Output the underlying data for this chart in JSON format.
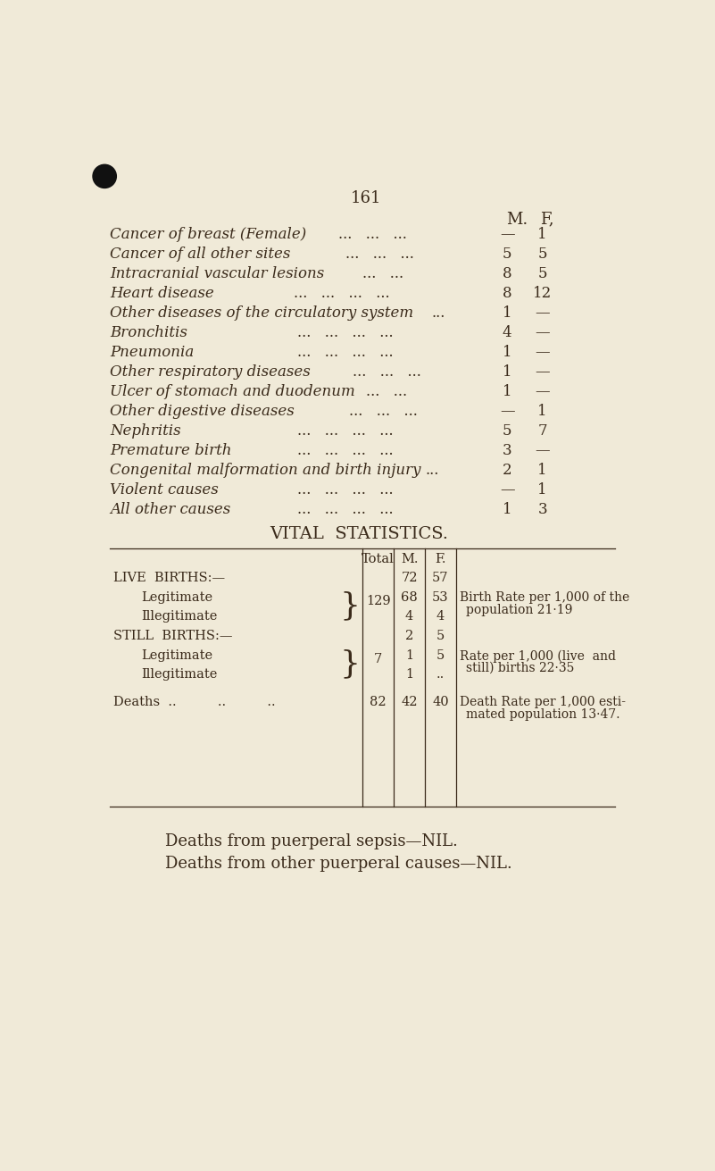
{
  "bg_color": "#f0ead8",
  "text_color": "#3a2a1a",
  "page_number": "161",
  "col_header_M": "M.",
  "col_header_F": "F,",
  "diseases": [
    {
      "label": "Cancer of breast (Female)",
      "dots3": true,
      "M": "—",
      "F": "1"
    },
    {
      "label": "Cancer of all other sites",
      "dots3": true,
      "M": "5",
      "F": "5"
    },
    {
      "label": "Intracranial vascular lesions",
      "dots2": true,
      "M": "8",
      "F": "5"
    },
    {
      "label": "Heart disease",
      "dots4": true,
      "M": "8",
      "F": "12"
    },
    {
      "label": "Other diseases of the circulatory system",
      "dots1": true,
      "M": "1",
      "F": "—"
    },
    {
      "label": "Bronchitis",
      "dots4": true,
      "M": "4",
      "F": "—"
    },
    {
      "label": "Pneumonia",
      "dots4": true,
      "M": "1",
      "F": "—"
    },
    {
      "label": "Other respiratory diseases",
      "dots3": true,
      "M": "1",
      "F": "—"
    },
    {
      "label": "Ulcer of stomach and duodenum",
      "dots2": true,
      "M": "1",
      "F": "—"
    },
    {
      "label": "Other digestive diseases",
      "dots3": true,
      "M": "—",
      "F": "1"
    },
    {
      "label": "Nephritis",
      "dots4": true,
      "M": "5",
      "F": "7"
    },
    {
      "label": "Premature birth",
      "dots4": true,
      "M": "3",
      "F": "—"
    },
    {
      "label": "Congenital malformation and birth injury",
      "dots1": true,
      "M": "2",
      "F": "1"
    },
    {
      "label": "Violent causes",
      "dots4": true,
      "M": "—",
      "F": "1"
    },
    {
      "label": "All other causes",
      "dots4": true,
      "M": "1",
      "F": "3"
    }
  ],
  "vital_stats_title": "VITAL  STATISTICS.",
  "footer1": "Deaths from puerperal sepsis—NIL.",
  "footer2": "Deaths from other puerperal causes—NIL.",
  "live_births_M": "72",
  "live_births_F": "57",
  "legit_live_M": "68",
  "legit_live_F": "53",
  "legit_live_total": "129",
  "illeg_live_M": "4",
  "illeg_live_F": "4",
  "still_births_M": "2",
  "still_births_F": "5",
  "legit_still_M": "1",
  "legit_still_F": "5",
  "legit_still_total": "7",
  "illeg_still_M": "1",
  "illeg_still_F": "..",
  "deaths_total": "82",
  "deaths_M": "42",
  "deaths_F": "40",
  "birth_rate_line1": "Birth Rate per 1,000 of the",
  "birth_rate_line2": "population 21·19",
  "still_rate_line1": "Rate per 1,000 (live  and",
  "still_rate_line2": "still) births 22·35",
  "death_rate_line1": "Death Rate per 1,000 esti-",
  "death_rate_line2": "mated population 13·47."
}
